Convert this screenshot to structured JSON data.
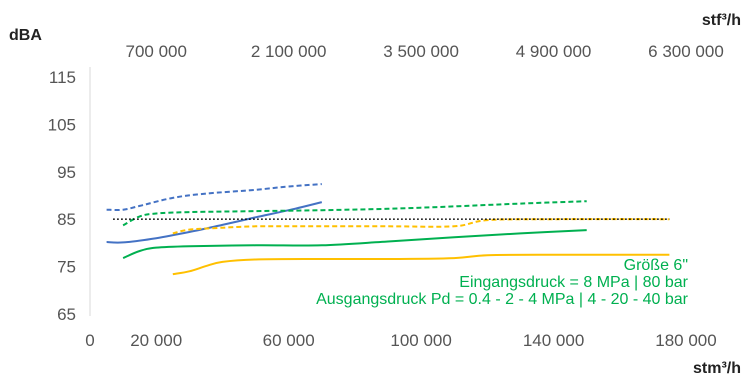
{
  "chart_data": {
    "type": "line",
    "title": "",
    "y_unit": "dBA",
    "x_unit_bottom": "stm³/h",
    "x_unit_top": "stf³/h",
    "x_ticks_bottom": [
      "0",
      "20 000",
      "60 000",
      "100 000",
      "140 000",
      "180 000"
    ],
    "x_ticks_bottom_values": [
      0,
      20000,
      60000,
      100000,
      140000,
      180000
    ],
    "x_ticks_top": [
      "700 000",
      "2 100 000",
      "3 500 000",
      "4 900 000",
      "6 300 000"
    ],
    "x_ticks_top_values": [
      20000,
      60000,
      100000,
      140000,
      180000
    ],
    "y_ticks": [
      "65",
      "75",
      "85",
      "95",
      "105",
      "115"
    ],
    "y_ticks_values": [
      65,
      75,
      85,
      95,
      105,
      115
    ],
    "xlim": [
      0,
      180000
    ],
    "ylim": [
      65,
      115
    ],
    "reference_line": {
      "y": 85,
      "x_range": [
        7000,
        175000
      ],
      "color": "#000000",
      "style": "dotted"
    },
    "series": [
      {
        "color": "#4472c4",
        "style": "dashed",
        "x": [
          5000,
          10000,
          15000,
          25000,
          35000,
          50000,
          60000,
          70000
        ],
        "y": [
          87,
          87,
          87.8,
          89.5,
          90.4,
          91.2,
          91.9,
          92.4
        ]
      },
      {
        "color": "#4472c4",
        "style": "solid",
        "x": [
          5000,
          10000,
          20000,
          30000,
          40000,
          50000,
          60000,
          70000
        ],
        "y": [
          80.2,
          80.1,
          81,
          82.3,
          83.8,
          85.4,
          86.9,
          88.6
        ]
      },
      {
        "color": "#00b050",
        "style": "dashed",
        "x": [
          10000,
          15000,
          20000,
          30000,
          50000,
          70000,
          90000,
          110000,
          130000,
          150000
        ],
        "y": [
          83.7,
          85.6,
          86.2,
          86.5,
          86.7,
          86.9,
          87.2,
          87.7,
          88.3,
          88.8
        ]
      },
      {
        "color": "#00b050",
        "style": "solid",
        "x": [
          10000,
          15000,
          20000,
          30000,
          50000,
          70000,
          90000,
          110000,
          130000,
          150000
        ],
        "y": [
          76.8,
          78.3,
          79,
          79.3,
          79.5,
          79.5,
          80.3,
          81.2,
          82,
          82.7
        ]
      },
      {
        "color": "#ffc000",
        "style": "dashed",
        "x": [
          25000,
          30000,
          40000,
          50000,
          60000,
          70000,
          90000,
          110000,
          120000,
          140000,
          175000
        ],
        "y": [
          82,
          82.8,
          83.2,
          83.5,
          83.5,
          83.5,
          83.5,
          83.5,
          84.8,
          85,
          85
        ]
      },
      {
        "color": "#ffc000",
        "style": "solid",
        "x": [
          25000,
          30000,
          35000,
          40000,
          50000,
          70000,
          90000,
          110000,
          120000,
          140000,
          175000
        ],
        "y": [
          73.4,
          74,
          75.1,
          76,
          76.5,
          76.6,
          76.6,
          76.8,
          77.4,
          77.5,
          77.5
        ]
      }
    ],
    "annotations": [
      {
        "text": "Größe 6\"",
        "color": "#00b050"
      },
      {
        "text": "Eingangsdruck = 8 MPa | 80 bar",
        "color": "#00b050"
      },
      {
        "text": "Ausgangsdruck Pd = 0.4 - 2 - 4 MPa | 4 - 20 - 40 bar",
        "color": "#00b050"
      }
    ],
    "grid": false,
    "legend": "none"
  }
}
